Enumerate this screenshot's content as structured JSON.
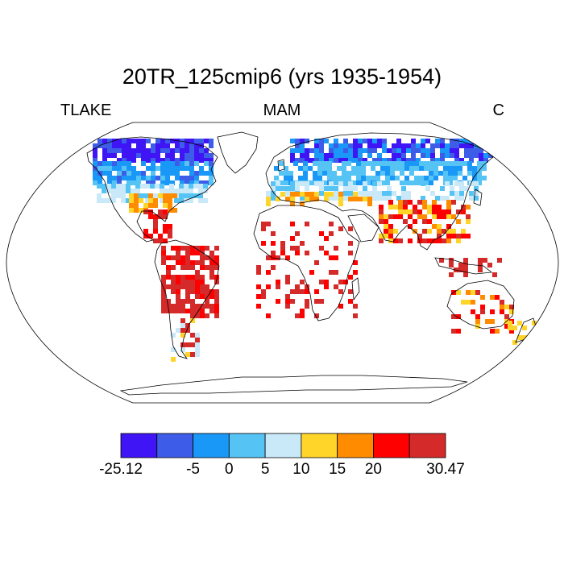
{
  "title": "20TR_125cmip6 (yrs 1935-1954)",
  "left_label": "TLAKE",
  "center_label": "MAM",
  "right_label": "C",
  "legend": {
    "colors": [
      "#3f14f5",
      "#3d5de8",
      "#1a98f7",
      "#55c4f4",
      "#c9e9f9",
      "#ffd52a",
      "#ff8c00",
      "#fe0000",
      "#d42a2a"
    ],
    "labels": [
      "-25.12",
      "-5",
      "0",
      "5",
      "10",
      "15",
      "20",
      "30.47"
    ],
    "min": -25.12,
    "max": 30.47
  }
}
